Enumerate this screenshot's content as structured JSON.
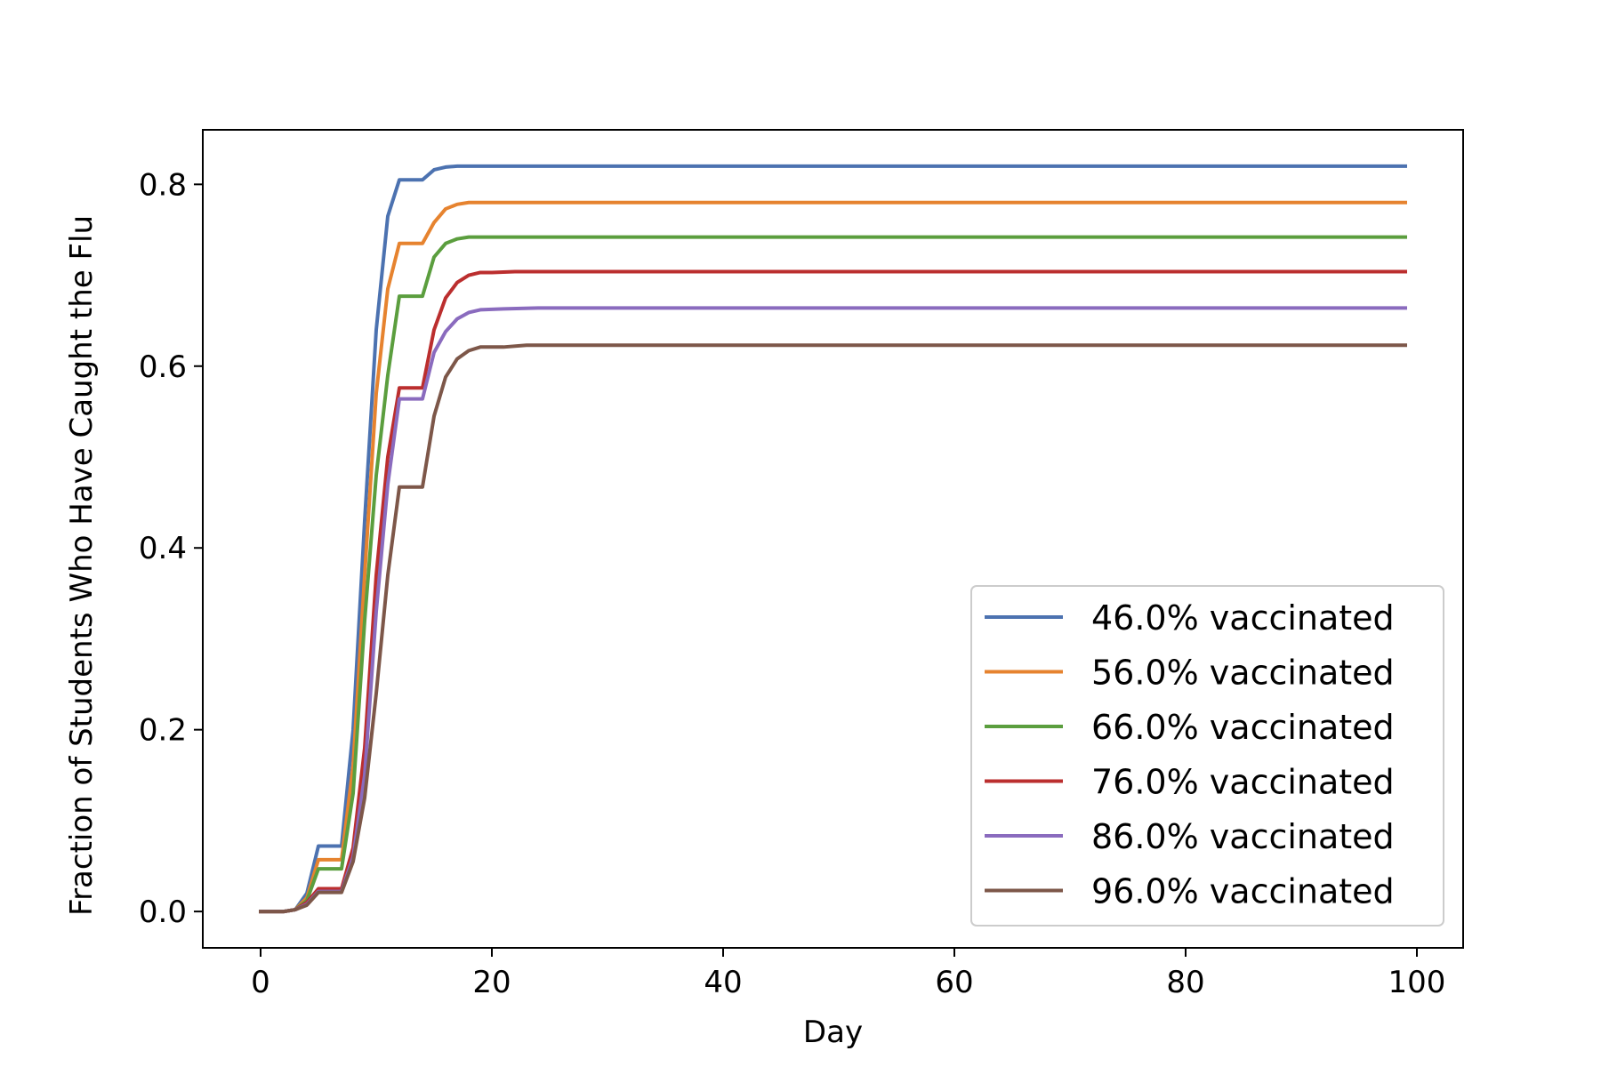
{
  "chart_data": {
    "type": "line",
    "title": "",
    "xlabel": "Day",
    "ylabel": "Fraction of Students Who Have Caught the Flu",
    "xlim": [
      -5,
      104
    ],
    "ylim": [
      -0.04,
      0.86
    ],
    "xticks": [
      0,
      20,
      40,
      60,
      80,
      100
    ],
    "xtick_labels": [
      "0",
      "20",
      "40",
      "60",
      "80",
      "100"
    ],
    "yticks": [
      0.0,
      0.2,
      0.4,
      0.6,
      0.8
    ],
    "ytick_labels": [
      "0.0",
      "0.2",
      "0.4",
      "0.6",
      "0.8"
    ],
    "grid": false,
    "legend_position": "lower-right",
    "series": [
      {
        "name": "46.0% vaccinated",
        "color": "#4c72b0",
        "points": [
          [
            0,
            0
          ],
          [
            2,
            0
          ],
          [
            3,
            0.002
          ],
          [
            4,
            0.02
          ],
          [
            5,
            0.072
          ],
          [
            6,
            0.072
          ],
          [
            7,
            0.072
          ],
          [
            8,
            0.2
          ],
          [
            9,
            0.43
          ],
          [
            10,
            0.64
          ],
          [
            11,
            0.765
          ],
          [
            12,
            0.805
          ],
          [
            13,
            0.805
          ],
          [
            14,
            0.805
          ],
          [
            15,
            0.816
          ],
          [
            16,
            0.819
          ],
          [
            17,
            0.82
          ],
          [
            18,
            0.82
          ],
          [
            99,
            0.82
          ]
        ]
      },
      {
        "name": "56.0% vaccinated",
        "color": "#e6832f",
        "points": [
          [
            0,
            0
          ],
          [
            2,
            0
          ],
          [
            3,
            0.002
          ],
          [
            4,
            0.015
          ],
          [
            5,
            0.057
          ],
          [
            6,
            0.057
          ],
          [
            7,
            0.057
          ],
          [
            8,
            0.16
          ],
          [
            9,
            0.37
          ],
          [
            10,
            0.57
          ],
          [
            11,
            0.685
          ],
          [
            12,
            0.735
          ],
          [
            13,
            0.735
          ],
          [
            14,
            0.735
          ],
          [
            15,
            0.758
          ],
          [
            16,
            0.773
          ],
          [
            17,
            0.778
          ],
          [
            18,
            0.78
          ],
          [
            99,
            0.78
          ]
        ]
      },
      {
        "name": "66.0% vaccinated",
        "color": "#5b9e3e",
        "points": [
          [
            0,
            0
          ],
          [
            2,
            0
          ],
          [
            3,
            0.002
          ],
          [
            4,
            0.012
          ],
          [
            5,
            0.047
          ],
          [
            6,
            0.047
          ],
          [
            7,
            0.047
          ],
          [
            8,
            0.13
          ],
          [
            9,
            0.32
          ],
          [
            10,
            0.48
          ],
          [
            11,
            0.59
          ],
          [
            12,
            0.677
          ],
          [
            13,
            0.677
          ],
          [
            14,
            0.677
          ],
          [
            15,
            0.72
          ],
          [
            16,
            0.735
          ],
          [
            17,
            0.74
          ],
          [
            18,
            0.742
          ],
          [
            99,
            0.742
          ]
        ]
      },
      {
        "name": "76.0% vaccinated",
        "color": "#bb2e2e",
        "points": [
          [
            0,
            0
          ],
          [
            2,
            0
          ],
          [
            3,
            0.002
          ],
          [
            4,
            0.01
          ],
          [
            5,
            0.025
          ],
          [
            6,
            0.025
          ],
          [
            7,
            0.025
          ],
          [
            8,
            0.07
          ],
          [
            9,
            0.18
          ],
          [
            10,
            0.37
          ],
          [
            11,
            0.5
          ],
          [
            12,
            0.576
          ],
          [
            13,
            0.576
          ],
          [
            14,
            0.576
          ],
          [
            15,
            0.64
          ],
          [
            16,
            0.675
          ],
          [
            17,
            0.692
          ],
          [
            18,
            0.7
          ],
          [
            19,
            0.703
          ],
          [
            20,
            0.703
          ],
          [
            22,
            0.704
          ],
          [
            99,
            0.704
          ]
        ]
      },
      {
        "name": "86.0% vaccinated",
        "color": "#8a6bbe",
        "points": [
          [
            0,
            0
          ],
          [
            2,
            0
          ],
          [
            3,
            0.002
          ],
          [
            4,
            0.008
          ],
          [
            5,
            0.022
          ],
          [
            6,
            0.022
          ],
          [
            7,
            0.022
          ],
          [
            8,
            0.06
          ],
          [
            9,
            0.15
          ],
          [
            10,
            0.33
          ],
          [
            11,
            0.47
          ],
          [
            12,
            0.564
          ],
          [
            13,
            0.564
          ],
          [
            14,
            0.564
          ],
          [
            15,
            0.615
          ],
          [
            16,
            0.638
          ],
          [
            17,
            0.652
          ],
          [
            18,
            0.659
          ],
          [
            19,
            0.662
          ],
          [
            21,
            0.663
          ],
          [
            24,
            0.664
          ],
          [
            99,
            0.664
          ]
        ]
      },
      {
        "name": "96.0% vaccinated",
        "color": "#7d5749",
        "points": [
          [
            0,
            0
          ],
          [
            2,
            0
          ],
          [
            3,
            0.002
          ],
          [
            4,
            0.007
          ],
          [
            5,
            0.021
          ],
          [
            6,
            0.021
          ],
          [
            7,
            0.021
          ],
          [
            8,
            0.055
          ],
          [
            9,
            0.125
          ],
          [
            10,
            0.24
          ],
          [
            11,
            0.37
          ],
          [
            12,
            0.467
          ],
          [
            13,
            0.467
          ],
          [
            14,
            0.467
          ],
          [
            15,
            0.545
          ],
          [
            16,
            0.588
          ],
          [
            17,
            0.608
          ],
          [
            18,
            0.617
          ],
          [
            19,
            0.621
          ],
          [
            21,
            0.621
          ],
          [
            23,
            0.623
          ],
          [
            99,
            0.623
          ]
        ]
      }
    ]
  }
}
